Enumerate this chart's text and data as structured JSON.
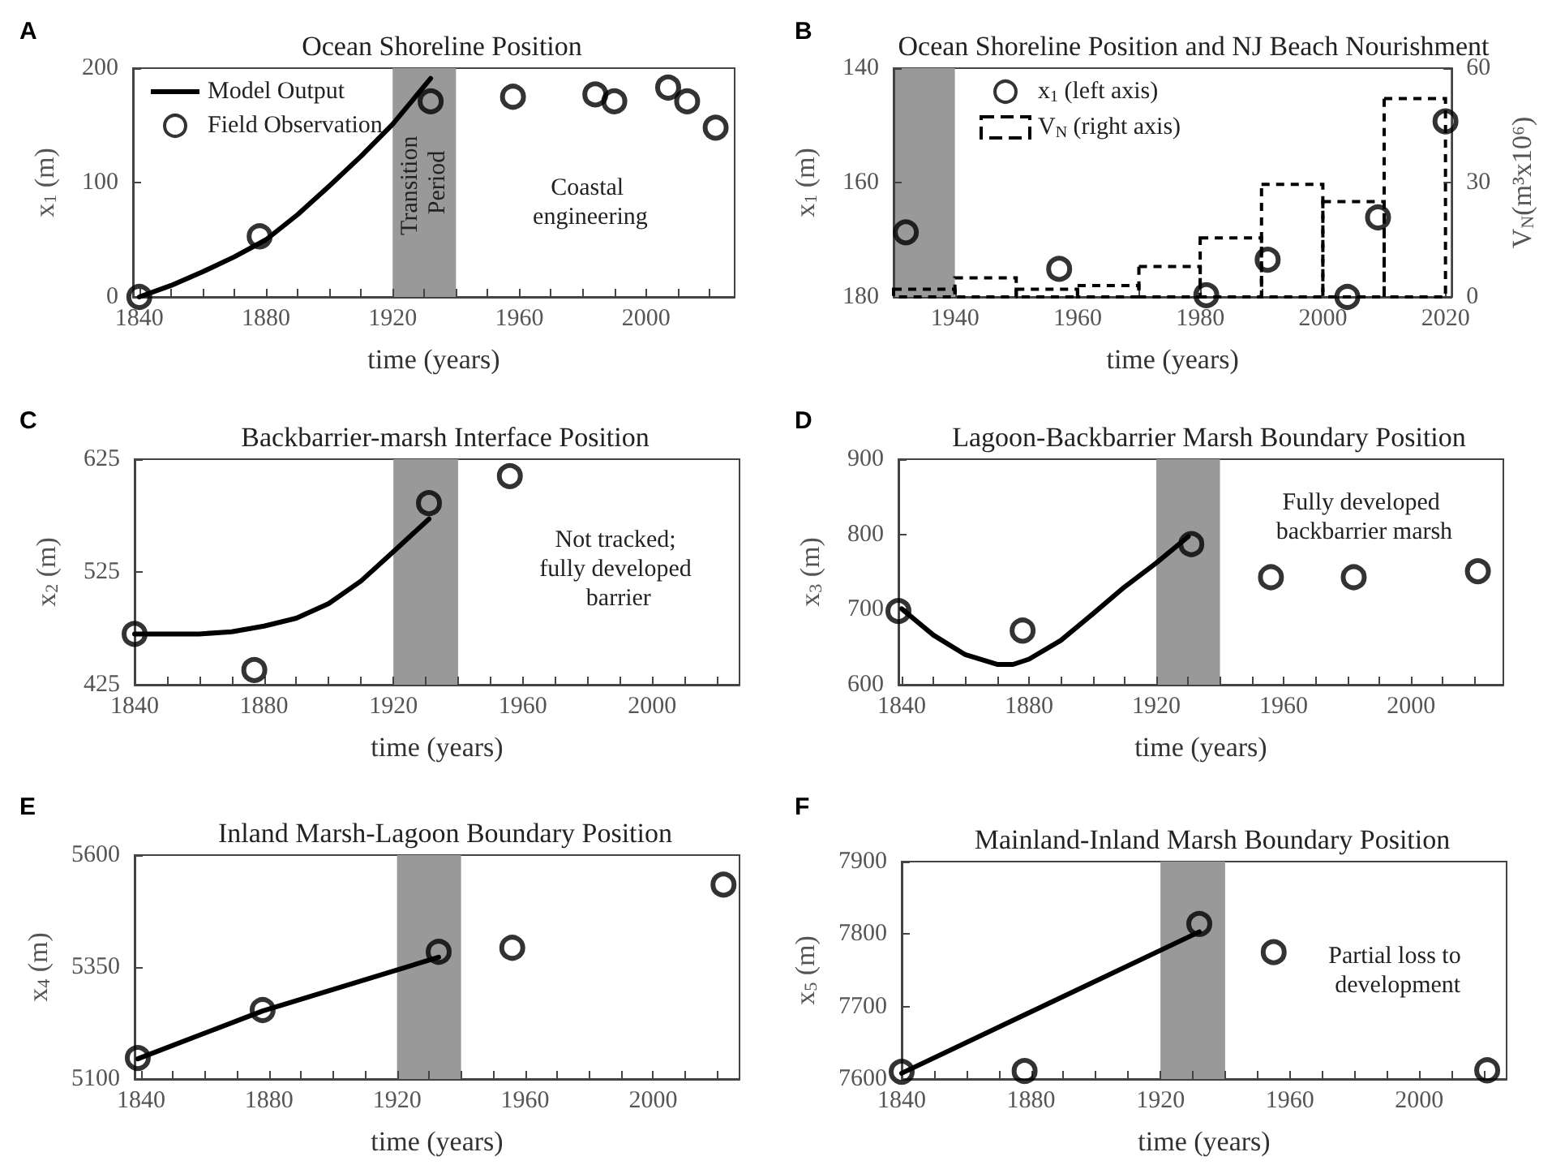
{
  "chart_data": [
    {
      "type": "line",
      "title": "Ocean Shoreline Position",
      "xlabel": "time (years)",
      "ylabel": "x$_{1}$ (m)",
      "xlim": [
        1838,
        2028
      ],
      "xticks": [
        1840,
        {
          "value": 1850,
          "label": null
        },
        {
          "value": 1860,
          "label": null
        },
        {
          "value": 1870,
          "label": null
        },
        1880,
        {
          "value": 1890,
          "label": null
        },
        {
          "value": 1900,
          "label": null
        },
        {
          "value": 1910,
          "label": null
        },
        1920,
        {
          "value": 1930,
          "label": null
        },
        {
          "value": 1940,
          "label": null
        },
        {
          "value": 1950,
          "label": null
        },
        1960,
        {
          "value": 1970,
          "label": null
        },
        {
          "value": 1980,
          "label": null
        },
        {
          "value": 1990,
          "label": null
        },
        2000,
        {
          "value": 2010,
          "label": null
        },
        {
          "value": 2020,
          "label": null
        }
      ],
      "ylim": [
        0,
        200
      ],
      "yticks": [
        0,
        100,
        200
      ],
      "grid": false,
      "legend": "top left",
      "bands": [
        {
          "axis": "x",
          "from": 1920,
          "to": 1940,
          "label": "Transition Period",
          "color": "#999999"
        }
      ],
      "annotations": [
        "A",
        "Coastal engineering"
      ],
      "series": [
        {
          "name": "Model Output",
          "color": "#000000",
          "marker": "none",
          "x": [
            1840,
            1850,
            1860,
            1870,
            1880,
            1890,
            1900,
            1910,
            1920,
            1932
          ],
          "values": [
            0,
            10,
            22,
            35,
            50,
            72,
            97,
            123,
            151,
            191
          ]
        },
        {
          "name": "Field Observation",
          "type": "scatter",
          "color": "#000000",
          "marker": "circle",
          "x": [
            1840,
            1878,
            1932,
            1958,
            1984,
            1990,
            2007,
            2013,
            2022
          ],
          "values": [
            0,
            53,
            171,
            175,
            177,
            171,
            183,
            171,
            148
          ]
        }
      ]
    },
    {
      "type": "scatter",
      "title": "Ocean Shoreline Position and NJ Beach Nourishment",
      "xlabel": "time (years)",
      "ylabel": "x$_{1}$ (m)",
      "y2label": "V$_{N}$(m³x10⁶)",
      "xlim": [
        1930,
        2021
      ],
      "xticks": [
        1940,
        {
          "value": 1950,
          "label": null
        },
        1960,
        {
          "value": 1970,
          "label": null
        },
        1980,
        {
          "value": 1990,
          "label": null
        },
        2000,
        {
          "value": 2010,
          "label": null
        },
        2020
      ],
      "ylim": [
        180,
        140
      ],
      "yticks": [
        140,
        160,
        180
      ],
      "y2lim": [
        0,
        60
      ],
      "y2ticks": [
        0,
        30,
        60
      ],
      "grid": false,
      "legend": "top left",
      "bands": [
        {
          "axis": "x",
          "from": 1930,
          "to": 1940,
          "color": "#999999"
        }
      ],
      "annotations": [
        "B"
      ],
      "series": [
        {
          "name": "x$_{1}$ (left axis)",
          "color": "#000000",
          "marker": "circle",
          "x": [
            1932,
            1957,
            1981,
            1991,
            2004,
            2009,
            2020
          ],
          "values": [
            168.7,
            175.1,
            179.7,
            173.5,
            180,
            166.1,
            149.3
          ]
        },
        {
          "name": "V$_{N}$ (right axis)",
          "type": "bar",
          "axis": "y2",
          "color": "#000000",
          "line_style": "dashed",
          "x": [
            1935,
            1945,
            1955,
            1965,
            1975,
            1985,
            1995,
            2005,
            2015
          ],
          "values": [
            2,
            5,
            2,
            3,
            8,
            15.5,
            29.5,
            25,
            52
          ]
        }
      ]
    },
    {
      "type": "line",
      "title": "Backbarrier-marsh Interface Position",
      "xlabel": "time (years)",
      "ylabel": "x$_{2}$ (m)",
      "xlim": [
        1840,
        2027
      ],
      "xticks": [
        1840,
        {
          "value": 1850,
          "label": null
        },
        {
          "value": 1860,
          "label": null
        },
        {
          "value": 1870,
          "label": null
        },
        1880,
        {
          "value": 1890,
          "label": null
        },
        {
          "value": 1900,
          "label": null
        },
        {
          "value": 1910,
          "label": null
        },
        1920,
        {
          "value": 1930,
          "label": null
        },
        {
          "value": 1940,
          "label": null
        },
        {
          "value": 1950,
          "label": null
        },
        1960,
        {
          "value": 1970,
          "label": null
        },
        {
          "value": 1980,
          "label": null
        },
        {
          "value": 1990,
          "label": null
        },
        2000,
        {
          "value": 2010,
          "label": null
        },
        {
          "value": 2020,
          "label": null
        }
      ],
      "ylim": [
        425,
        625
      ],
      "yticks": [
        425,
        525,
        625
      ],
      "grid": false,
      "bands": [
        {
          "axis": "x",
          "from": 1920,
          "to": 1940,
          "color": "#999999"
        }
      ],
      "annotations": [
        "C",
        "Not tracked; fully developed barrier"
      ],
      "series": [
        {
          "color": "#000000",
          "marker": "none",
          "x": [
            1840,
            1850,
            1860,
            1870,
            1880,
            1890,
            1900,
            1910,
            1920,
            1931
          ],
          "values": [
            470,
            470,
            470,
            472,
            477,
            484,
            497,
            517,
            543,
            572
          ]
        },
        {
          "type": "scatter",
          "color": "#000000",
          "marker": "circle",
          "x": [
            1840,
            1877,
            1931,
            1956
          ],
          "values": [
            470,
            438,
            586,
            610
          ]
        }
      ]
    },
    {
      "type": "line",
      "title": "Lagoon-Backbarrier Marsh Boundary Position",
      "xlabel": "time (years)",
      "ylabel": "x$_{3}$ (m)",
      "xlim": [
        1839,
        2029
      ],
      "xticks": [
        1840,
        {
          "value": 1850,
          "label": null
        },
        {
          "value": 1860,
          "label": null
        },
        {
          "value": 1870,
          "label": null
        },
        1880,
        {
          "value": 1890,
          "label": null
        },
        {
          "value": 1900,
          "label": null
        },
        {
          "value": 1910,
          "label": null
        },
        1920,
        {
          "value": 1930,
          "label": null
        },
        {
          "value": 1940,
          "label": null
        },
        {
          "value": 1950,
          "label": null
        },
        1960,
        {
          "value": 1970,
          "label": null
        },
        {
          "value": 1980,
          "label": null
        },
        {
          "value": 1990,
          "label": null
        },
        2000,
        {
          "value": 2010,
          "label": null
        },
        {
          "value": 2020,
          "label": null
        }
      ],
      "ylim": [
        600,
        900
      ],
      "yticks": [
        600,
        700,
        800,
        900
      ],
      "grid": false,
      "bands": [
        {
          "axis": "x",
          "from": 1920,
          "to": 1940,
          "color": "#999999"
        }
      ],
      "annotations": [
        "D",
        "Fully developed backbarrier marsh"
      ],
      "series": [
        {
          "color": "#000000",
          "marker": "none",
          "x": [
            1840,
            1850,
            1860,
            1870,
            1875,
            1880,
            1890,
            1900,
            1910,
            1920,
            1930
          ],
          "values": [
            701,
            666,
            640,
            627,
            627,
            634,
            659,
            694,
            730,
            762,
            797
          ]
        },
        {
          "type": "scatter",
          "color": "#000000",
          "marker": "circle",
          "x": [
            1839,
            1878,
            1931,
            1956,
            1982,
            2021
          ],
          "values": [
            698,
            672,
            787,
            743,
            743,
            751
          ]
        }
      ]
    },
    {
      "type": "line",
      "title": "Inland Marsh-Lagoon Boundary Position",
      "xlabel": "time (years)",
      "ylabel": "x$_{4}$ (m)",
      "xlim": [
        1838,
        2027
      ],
      "xticks": [
        1840,
        {
          "value": 1850,
          "label": null
        },
        {
          "value": 1860,
          "label": null
        },
        {
          "value": 1870,
          "label": null
        },
        1880,
        {
          "value": 1890,
          "label": null
        },
        {
          "value": 1900,
          "label": null
        },
        {
          "value": 1910,
          "label": null
        },
        1920,
        {
          "value": 1930,
          "label": null
        },
        {
          "value": 1940,
          "label": null
        },
        {
          "value": 1950,
          "label": null
        },
        1960,
        {
          "value": 1970,
          "label": null
        },
        {
          "value": 1980,
          "label": null
        },
        {
          "value": 1990,
          "label": null
        },
        2000,
        {
          "value": 2010,
          "label": null
        },
        {
          "value": 2020,
          "label": null
        }
      ],
      "ylim": [
        5100,
        5600
      ],
      "yticks": [
        5100,
        5350,
        5600
      ],
      "grid": false,
      "bands": [
        {
          "axis": "x",
          "from": 1920,
          "to": 1940,
          "color": "#999999"
        }
      ],
      "annotations": [
        "E"
      ],
      "series": [
        {
          "color": "#000000",
          "marker": "none",
          "x": [
            1839,
            1878,
            1933
          ],
          "values": [
            5145,
            5252,
            5372
          ]
        },
        {
          "type": "scatter",
          "color": "#000000",
          "marker": "circle",
          "x": [
            1839,
            1878,
            1933,
            1956,
            2022
          ],
          "values": [
            5147,
            5254,
            5384,
            5393,
            5534
          ]
        }
      ]
    },
    {
      "type": "line",
      "title": "Mainland-Inland Marsh Boundary Position",
      "xlabel": "time (years)",
      "ylabel": "x$_{5}$ (m)",
      "xlim": [
        1840,
        2027
      ],
      "xticks": [
        1840,
        {
          "value": 1850,
          "label": null
        },
        {
          "value": 1860,
          "label": null
        },
        {
          "value": 1870,
          "label": null
        },
        1880,
        {
          "value": 1890,
          "label": null
        },
        {
          "value": 1900,
          "label": null
        },
        {
          "value": 1910,
          "label": null
        },
        1920,
        {
          "value": 1930,
          "label": null
        },
        {
          "value": 1940,
          "label": null
        },
        {
          "value": 1950,
          "label": null
        },
        1960,
        {
          "value": 1970,
          "label": null
        },
        {
          "value": 1980,
          "label": null
        },
        {
          "value": 1990,
          "label": null
        },
        2000,
        {
          "value": 2010,
          "label": null
        },
        {
          "value": 2020,
          "label": null
        }
      ],
      "ylim": [
        7600,
        7900
      ],
      "yticks": [
        7600,
        7700,
        7800,
        7900
      ],
      "grid": false,
      "bands": [
        {
          "axis": "x",
          "from": 1920,
          "to": 1940,
          "color": "#999999"
        }
      ],
      "annotations": [
        "F",
        "Partial loss to development"
      ],
      "series": [
        {
          "color": "#000000",
          "marker": "none",
          "x": [
            1840,
            1932
          ],
          "values": [
            7608,
            7803
          ]
        },
        {
          "type": "scatter",
          "color": "#000000",
          "marker": "circle",
          "x": [
            1840,
            1878,
            1932,
            1955,
            2021
          ],
          "values": [
            7610,
            7611,
            7814,
            7775,
            7612
          ]
        }
      ]
    }
  ]
}
